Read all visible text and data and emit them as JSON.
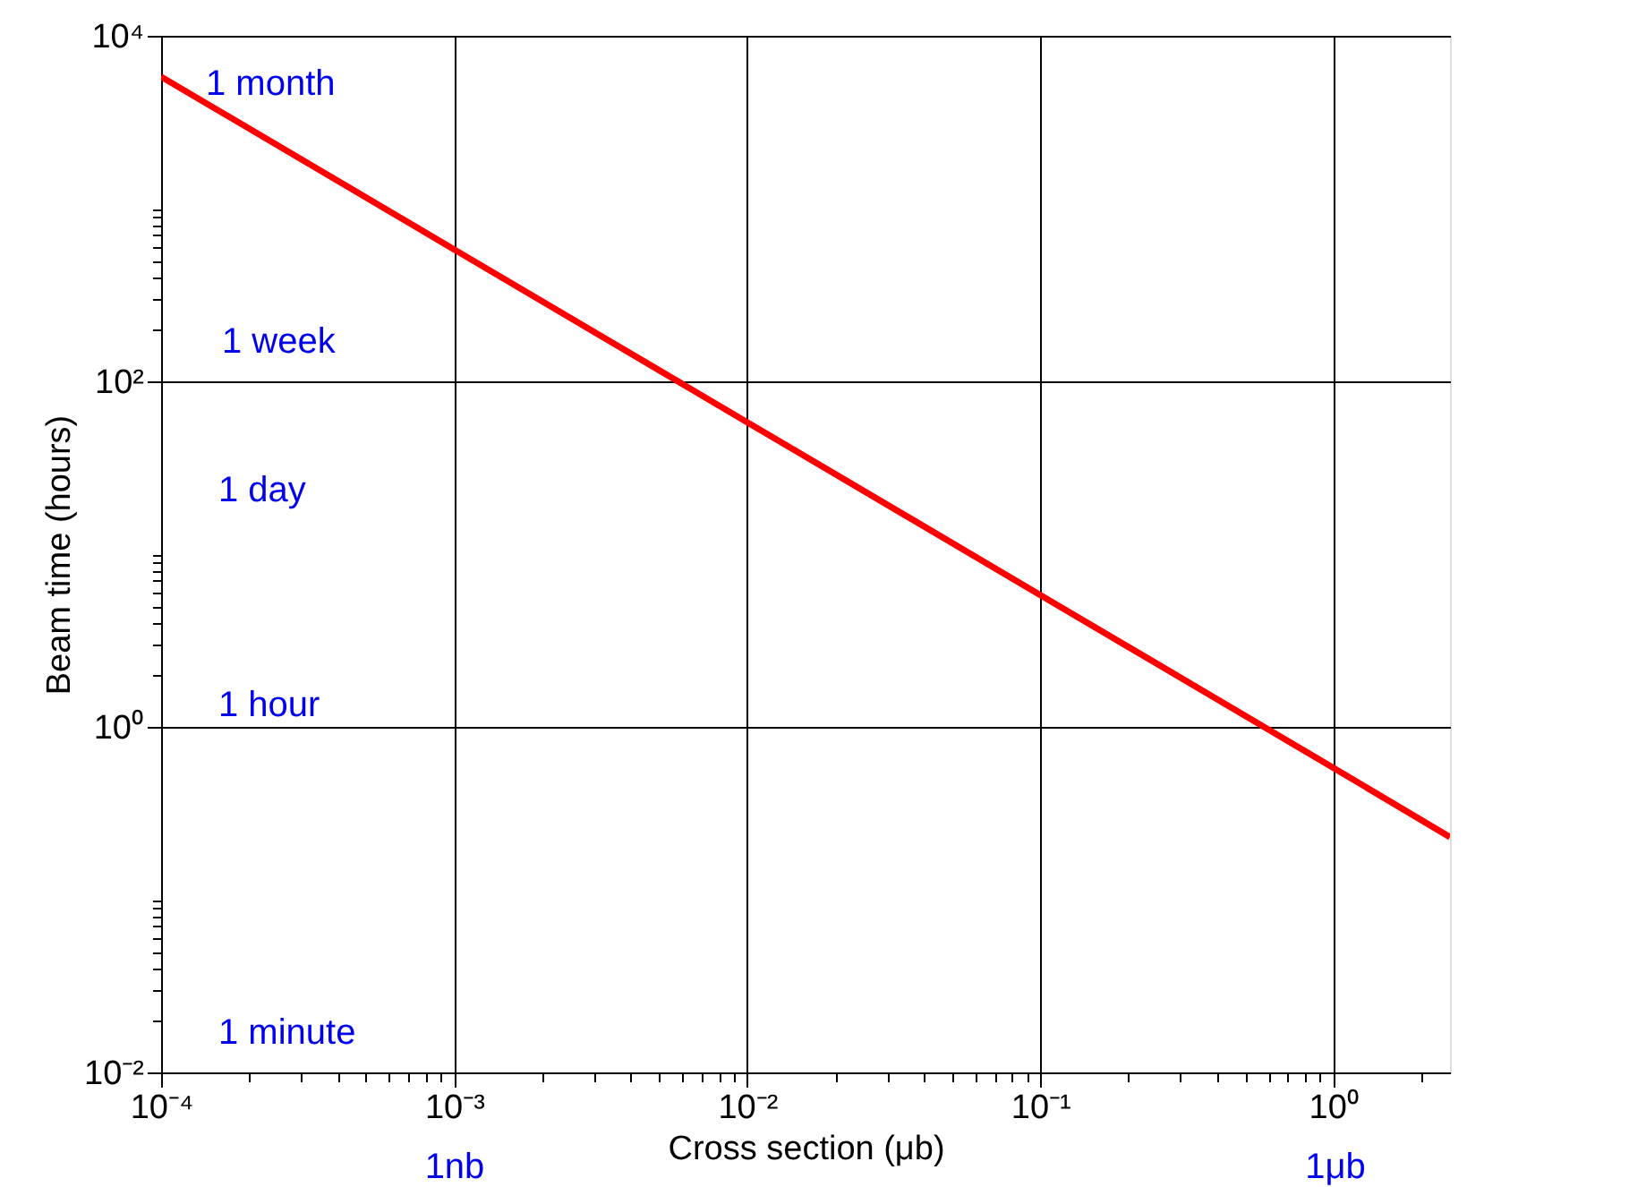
{
  "chart_data": {
    "type": "line",
    "xlabel": "Cross section (μb)",
    "ylabel": "Beam time (hours)",
    "x": [
      0.0001,
      0.001,
      0.01,
      0.1,
      1,
      2.5
    ],
    "series": [
      {
        "color": "#ff0000",
        "values": [
          5800,
          580,
          58,
          5.8,
          0.58,
          0.23
        ]
      }
    ],
    "log": "xy",
    "grid": true,
    "marker": "none",
    "line_style": "solid",
    "xlim": [
      0.0001,
      2.5
    ],
    "ylim": [
      0.01,
      10000
    ],
    "xticks": [
      {
        "value": 0.0001,
        "label": "10⁻⁴"
      },
      {
        "value": 0.0002,
        "label": null
      },
      {
        "value": 0.0003,
        "label": null
      },
      {
        "value": 0.0004,
        "label": null
      },
      {
        "value": 0.0005,
        "label": null
      },
      {
        "value": 0.0006,
        "label": null
      },
      {
        "value": 0.0007,
        "label": null
      },
      {
        "value": 0.0008,
        "label": null
      },
      {
        "value": 0.0009,
        "label": null
      },
      {
        "value": 0.001,
        "label": "10⁻³"
      },
      {
        "value": 0.002,
        "label": null
      },
      {
        "value": 0.003,
        "label": null
      },
      {
        "value": 0.004,
        "label": null
      },
      {
        "value": 0.005,
        "label": null
      },
      {
        "value": 0.006,
        "label": null
      },
      {
        "value": 0.007,
        "label": null
      },
      {
        "value": 0.008,
        "label": null
      },
      {
        "value": 0.009,
        "label": null
      },
      {
        "value": 0.01,
        "label": "10⁻²"
      },
      {
        "value": 0.02,
        "label": null
      },
      {
        "value": 0.03,
        "label": null
      },
      {
        "value": 0.04,
        "label": null
      },
      {
        "value": 0.05,
        "label": null
      },
      {
        "value": 0.06,
        "label": null
      },
      {
        "value": 0.07,
        "label": null
      },
      {
        "value": 0.08,
        "label": null
      },
      {
        "value": 0.09,
        "label": null
      },
      {
        "value": 0.1,
        "label": "10⁻¹"
      },
      {
        "value": 0.2,
        "label": null
      },
      {
        "value": 0.3,
        "label": null
      },
      {
        "value": 0.4,
        "label": null
      },
      {
        "value": 0.5,
        "label": null
      },
      {
        "value": 0.6,
        "label": null
      },
      {
        "value": 0.7,
        "label": null
      },
      {
        "value": 0.8,
        "label": null
      },
      {
        "value": 0.9,
        "label": null
      },
      {
        "value": 1,
        "label": "10⁰"
      },
      {
        "value": 2,
        "label": null
      }
    ],
    "yticks": [
      {
        "value": 0.01,
        "label": "10⁻²"
      },
      {
        "value": 0.02,
        "label": null
      },
      {
        "value": 0.03,
        "label": null
      },
      {
        "value": 0.04,
        "label": null
      },
      {
        "value": 0.05,
        "label": null
      },
      {
        "value": 0.06,
        "label": null
      },
      {
        "value": 0.07,
        "label": null
      },
      {
        "value": 0.08,
        "label": null
      },
      {
        "value": 0.09,
        "label": null
      },
      {
        "value": 0.1,
        "label": null
      },
      {
        "value": 1,
        "label": "10⁰"
      },
      {
        "value": 2,
        "label": null
      },
      {
        "value": 3,
        "label": null
      },
      {
        "value": 4,
        "label": null
      },
      {
        "value": 5,
        "label": null
      },
      {
        "value": 6,
        "label": null
      },
      {
        "value": 7,
        "label": null
      },
      {
        "value": 8,
        "label": null
      },
      {
        "value": 9,
        "label": null
      },
      {
        "value": 10,
        "label": null
      },
      {
        "value": 100,
        "label": "10²"
      },
      {
        "value": 200,
        "label": null
      },
      {
        "value": 300,
        "label": null
      },
      {
        "value": 400,
        "label": null
      },
      {
        "value": 500,
        "label": null
      },
      {
        "value": 600,
        "label": null
      },
      {
        "value": 700,
        "label": null
      },
      {
        "value": 800,
        "label": null
      },
      {
        "value": 900,
        "label": null
      },
      {
        "value": 1000,
        "label": null
      },
      {
        "value": 10000,
        "label": "10⁴"
      }
    ],
    "annotations": [
      "1 month",
      "1 week",
      "1 day",
      "1 hour",
      "1 minute",
      "1nb",
      "1μb"
    ]
  }
}
